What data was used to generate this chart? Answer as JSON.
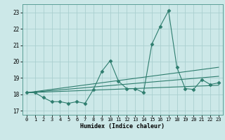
{
  "xlabel": "Humidex (Indice chaleur)",
  "xlim": [
    -0.5,
    23.5
  ],
  "ylim": [
    16.75,
    23.5
  ],
  "yticks": [
    17,
    18,
    19,
    20,
    21,
    22,
    23
  ],
  "xticks": [
    0,
    1,
    2,
    3,
    4,
    5,
    6,
    7,
    8,
    9,
    10,
    11,
    12,
    13,
    14,
    15,
    16,
    17,
    18,
    19,
    20,
    21,
    22,
    23
  ],
  "background_color": "#cce8e8",
  "grid_color": "#aacfcf",
  "line_color": "#2e7d6e",
  "series": [
    {
      "x": [
        0,
        1,
        2,
        3,
        4,
        5,
        6,
        7,
        8,
        9,
        10,
        11,
        12,
        13,
        14,
        15,
        16,
        17,
        18,
        19,
        20,
        21,
        22,
        23
      ],
      "y": [
        18.1,
        18.1,
        17.8,
        17.55,
        17.55,
        17.45,
        17.55,
        17.45,
        18.3,
        19.4,
        20.05,
        18.8,
        18.35,
        18.35,
        18.1,
        21.05,
        22.15,
        23.1,
        19.65,
        18.35,
        18.3,
        18.9,
        18.6,
        18.7
      ],
      "marker": "D",
      "markersize": 2.5,
      "linestyle": "-"
    },
    {
      "x": [
        0,
        23
      ],
      "y": [
        18.1,
        19.65
      ],
      "marker": null,
      "markersize": 0,
      "linestyle": "-"
    },
    {
      "x": [
        0,
        23
      ],
      "y": [
        18.1,
        18.55
      ],
      "marker": null,
      "markersize": 0,
      "linestyle": "-"
    },
    {
      "x": [
        0,
        23
      ],
      "y": [
        18.1,
        19.1
      ],
      "marker": null,
      "markersize": 0,
      "linestyle": "-"
    }
  ]
}
